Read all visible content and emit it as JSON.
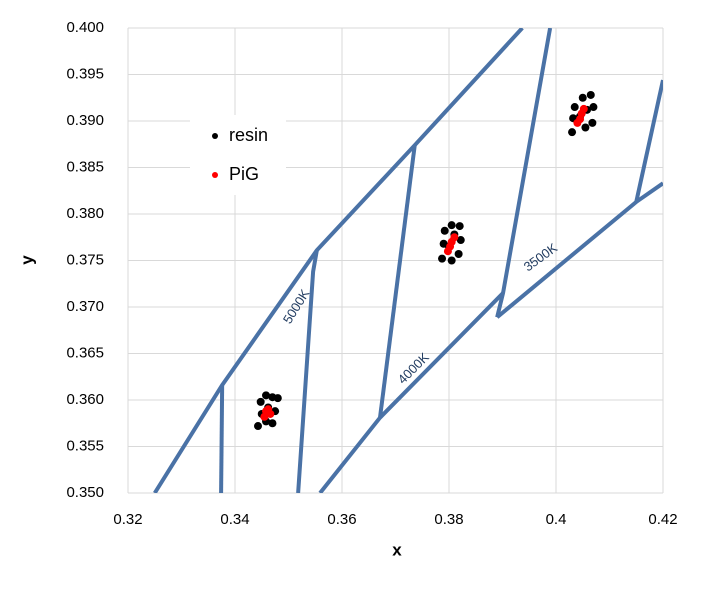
{
  "chart_data": {
    "type": "scatter",
    "x_label": "x",
    "y_label": "y",
    "xlim": [
      0.32,
      0.42
    ],
    "ylim": [
      0.35,
      0.4
    ],
    "xticks": [
      0.32,
      0.34,
      0.36,
      0.38,
      0.4,
      0.42
    ],
    "yticks": [
      {
        "value": 0.35,
        "label": "0.350"
      },
      0.355,
      {
        "value": 0.36,
        "label": "0.360"
      },
      0.365,
      {
        "value": 0.37,
        "label": "0.370"
      },
      0.375,
      {
        "value": 0.38,
        "label": "0.380"
      },
      0.385,
      {
        "value": 0.39,
        "label": "0.390"
      },
      0.395,
      {
        "value": 0.4,
        "label": "0.400"
      }
    ],
    "grid": true,
    "series": [
      {
        "name": "resin",
        "color": "#000000",
        "x": [
          0.3443,
          0.345,
          0.3448,
          0.3458,
          0.347,
          0.348,
          0.3475,
          0.347,
          0.3458,
          0.3462,
          0.3787,
          0.379,
          0.3792,
          0.3805,
          0.382,
          0.3822,
          0.3818,
          0.3805,
          0.38,
          0.381,
          0.403,
          0.4032,
          0.4035,
          0.405,
          0.4065,
          0.407,
          0.4068,
          0.4055,
          0.4045,
          0.4058
        ],
        "y": [
          0.3572,
          0.3585,
          0.3598,
          0.3605,
          0.3603,
          0.3602,
          0.3588,
          0.3575,
          0.3577,
          0.3592,
          0.3752,
          0.3768,
          0.3782,
          0.3788,
          0.3787,
          0.3772,
          0.3757,
          0.375,
          0.3765,
          0.3778,
          0.3888,
          0.3903,
          0.3915,
          0.3925,
          0.3928,
          0.3915,
          0.3898,
          0.3893,
          0.3905,
          0.3912
        ]
      },
      {
        "name": "PiG",
        "color": "#ff0000",
        "x": [
          0.3455,
          0.3462,
          0.3466,
          0.3458,
          0.3798,
          0.3805,
          0.381,
          0.3802,
          0.404,
          0.4048,
          0.4052,
          0.4045
        ],
        "y": [
          0.3582,
          0.359,
          0.3585,
          0.3588,
          0.376,
          0.377,
          0.3775,
          0.3765,
          0.3898,
          0.3908,
          0.3913,
          0.3902
        ]
      }
    ],
    "lines_color": "#4a72a6",
    "lines": [
      {
        "x": [
          0.325,
          0.3376,
          0.3553,
          0.3736,
          0.3937
        ],
        "y": [
          0.35,
          0.3616,
          0.3761,
          0.3874,
          0.4
        ]
      },
      {
        "x": [
          0.3376,
          0.3374
        ],
        "y": [
          0.3616,
          0.35
        ]
      },
      {
        "x": [
          0.3553,
          0.3546,
          0.3518
        ],
        "y": [
          0.3761,
          0.3738,
          0.35
        ]
      },
      {
        "x": [
          0.3736,
          0.3671
        ],
        "y": [
          0.3874,
          0.3581
        ]
      },
      {
        "x": [
          0.3989,
          0.3901,
          0.389
        ],
        "y": [
          0.4,
          0.3715,
          0.3689
        ]
      },
      {
        "x": [
          0.3559,
          0.3671,
          0.3901
        ],
        "y": [
          0.35,
          0.3581,
          0.3715
        ]
      },
      {
        "x": [
          0.389,
          0.415,
          0.42
        ],
        "y": [
          0.3689,
          0.3813,
          0.3833
        ]
      },
      {
        "x": [
          0.415,
          0.42
        ],
        "y": [
          0.3813,
          0.3944
        ]
      }
    ],
    "annotations": [
      "5000K",
      "4000K",
      "3500K"
    ]
  }
}
